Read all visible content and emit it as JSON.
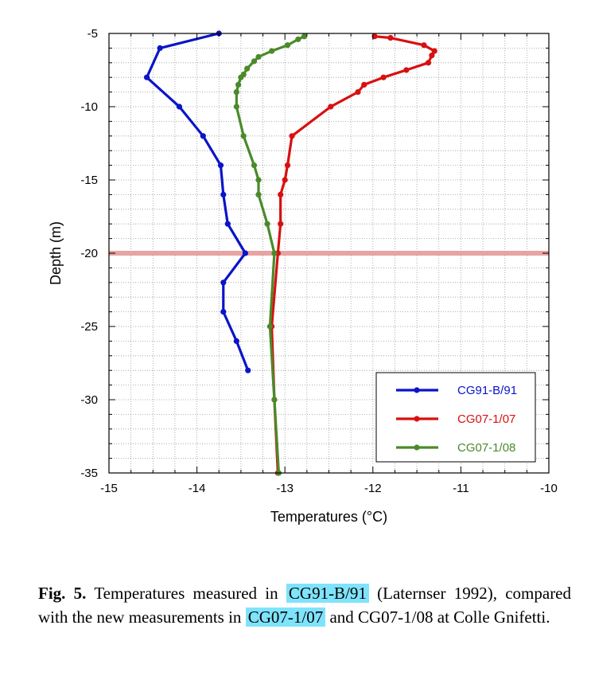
{
  "chart_data": {
    "type": "line",
    "xlabel": "Temperatures (°C)",
    "ylabel": "Depth (m)",
    "xlim": [
      -15,
      -10
    ],
    "ylim": [
      -35,
      -5
    ],
    "xticks": [
      "-15",
      "-14",
      "-13",
      "-12",
      "-11",
      "-10"
    ],
    "yticks": [
      "-5",
      "-10",
      "-15",
      "-20",
      "-25",
      "-30",
      "-35"
    ],
    "grid": "dotted",
    "legend_position": "bottom-right",
    "reference_line": {
      "y": -20,
      "color": "#e8a3a3"
    },
    "series": [
      {
        "name": "CG91-B/91",
        "color": "#0a14c8",
        "points": [
          [
            -13.75,
            -5
          ],
          [
            -14.42,
            -6
          ],
          [
            -14.57,
            -8
          ],
          [
            -14.2,
            -10
          ],
          [
            -13.93,
            -12
          ],
          [
            -13.73,
            -14
          ],
          [
            -13.7,
            -16
          ],
          [
            -13.65,
            -18
          ],
          [
            -13.45,
            -20
          ],
          [
            -13.7,
            -22
          ],
          [
            -13.7,
            -24
          ],
          [
            -13.55,
            -26
          ],
          [
            -13.42,
            -28
          ]
        ]
      },
      {
        "name": "CG07-1/07",
        "color": "#d81010",
        "points": [
          [
            -11.98,
            -5.2
          ],
          [
            -11.8,
            -5.3
          ],
          [
            -11.42,
            -5.8
          ],
          [
            -11.3,
            -6.2
          ],
          [
            -11.33,
            -6.5
          ],
          [
            -11.37,
            -7
          ],
          [
            -11.62,
            -7.5
          ],
          [
            -11.88,
            -8
          ],
          [
            -12.1,
            -8.5
          ],
          [
            -12.17,
            -9
          ],
          [
            -12.48,
            -10
          ],
          [
            -12.92,
            -12
          ],
          [
            -12.97,
            -14
          ],
          [
            -13.0,
            -15
          ],
          [
            -13.05,
            -16
          ],
          [
            -13.05,
            -18
          ],
          [
            -13.08,
            -20
          ],
          [
            -13.15,
            -25
          ],
          [
            -13.12,
            -30
          ],
          [
            -13.08,
            -35
          ]
        ]
      },
      {
        "name": "CG07-1/08",
        "color": "#4a8a2a",
        "points": [
          [
            -12.78,
            -5.2
          ],
          [
            -12.85,
            -5.4
          ],
          [
            -12.97,
            -5.8
          ],
          [
            -13.15,
            -6.2
          ],
          [
            -13.3,
            -6.6
          ],
          [
            -13.35,
            -6.9
          ],
          [
            -13.43,
            -7.4
          ],
          [
            -13.47,
            -7.8
          ],
          [
            -13.5,
            -8
          ],
          [
            -13.53,
            -8.5
          ],
          [
            -13.55,
            -9
          ],
          [
            -13.55,
            -10
          ],
          [
            -13.47,
            -12
          ],
          [
            -13.35,
            -14
          ],
          [
            -13.3,
            -15
          ],
          [
            -13.3,
            -16
          ],
          [
            -13.2,
            -18
          ],
          [
            -13.12,
            -20
          ],
          [
            -13.17,
            -25
          ],
          [
            -13.12,
            -30
          ],
          [
            -13.07,
            -35
          ]
        ]
      }
    ]
  },
  "caption": {
    "label": "Fig. 5.",
    "text_1": " Temperatures measured in ",
    "hl_1": "CG91-B/91",
    "text_2": " (Laternser 1992), compared with the new measurements in ",
    "hl_2": "CG07-1/07",
    "text_3": " and CG07-1/08 at Colle Gnifetti."
  }
}
